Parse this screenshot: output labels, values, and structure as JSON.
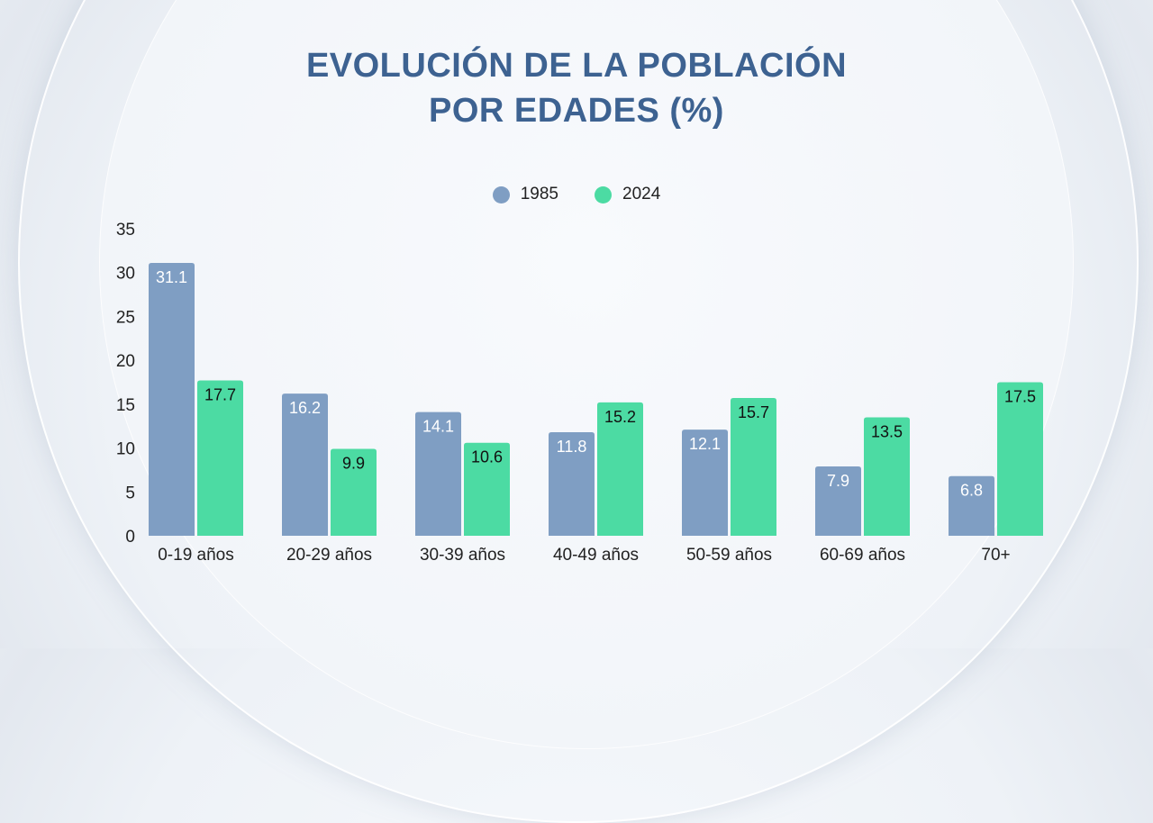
{
  "chart_data": {
    "type": "bar",
    "title": [
      "EVOLUCIÓN DE LA POBLACIÓN",
      "POR EDADES (%)"
    ],
    "categories": [
      "0-19 años",
      "20-29 años",
      "30-39 años",
      "40-49 años",
      "50-59 años",
      "60-69 años",
      "70+"
    ],
    "series": [
      {
        "name": "1985",
        "color": "#7f9ec3",
        "values": [
          31.1,
          16.2,
          14.1,
          11.8,
          12.1,
          7.9,
          6.8
        ]
      },
      {
        "name": "2024",
        "color": "#4cdba3",
        "values": [
          17.7,
          9.9,
          10.6,
          15.2,
          15.7,
          13.5,
          17.5
        ]
      }
    ],
    "yticks": [
      0,
      5,
      10,
      15,
      20,
      25,
      30,
      35
    ],
    "ylim": [
      0,
      35
    ],
    "grid": false,
    "legend_placement": "top-center",
    "xlabel": "",
    "ylabel": ""
  }
}
